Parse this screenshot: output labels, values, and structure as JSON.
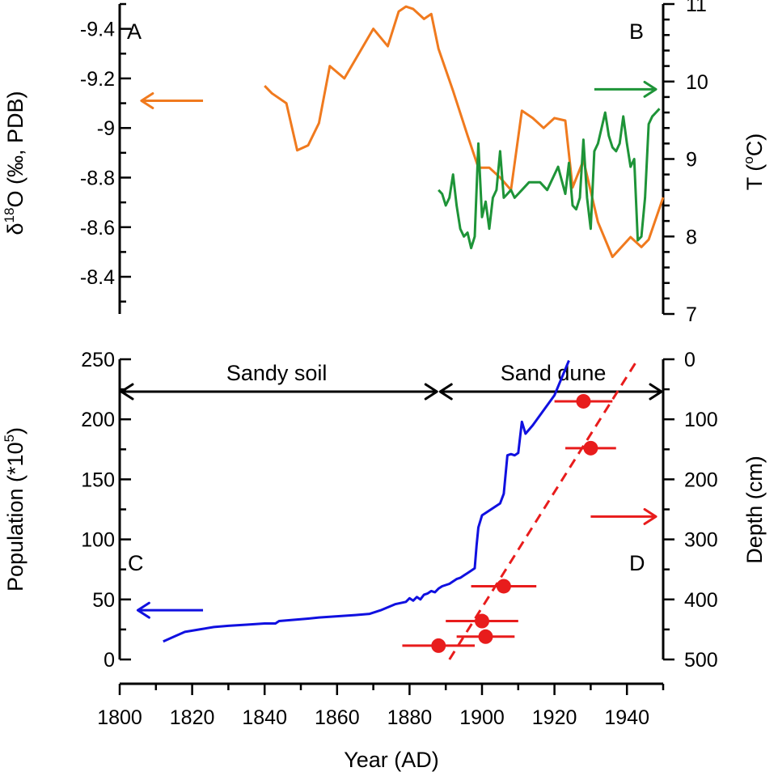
{
  "chart_data": [
    {
      "type": "line",
      "panel": "top",
      "x_label": "Year (AD)",
      "left_axis": {
        "label_pre": "δ",
        "label_sup": "18",
        "label_post": "O (‰, PDB)",
        "reversed": true,
        "ylim": [
          -8.25,
          -9.5
        ],
        "ticks": [
          "-9.4",
          "-9.2",
          "-9",
          "-8.8",
          "-8.6",
          "-8.4"
        ],
        "tick_values": [
          -9.4,
          -9.2,
          -9.0,
          -8.8,
          -8.6,
          -8.4
        ]
      },
      "right_axis": {
        "label_pre": "T (",
        "label_sup": "o",
        "label_post": "C)",
        "ylim": [
          7,
          11
        ],
        "ticks": [
          "7",
          "8",
          "9",
          "10",
          "11"
        ],
        "tick_values": [
          7,
          8,
          9,
          10,
          11
        ]
      },
      "panel_labels": [
        "A",
        "B"
      ],
      "series": [
        {
          "axis": "left",
          "color": "#F07A1E",
          "x": [
            1840,
            1842,
            1846,
            1849,
            1852,
            1855,
            1858,
            1862,
            1866,
            1870,
            1874,
            1877,
            1879,
            1881,
            1884,
            1886,
            1888,
            1892,
            1896,
            1899,
            1902,
            1905,
            1908,
            1911,
            1914,
            1917,
            1920,
            1923,
            1925,
            1928,
            1932,
            1936,
            1941,
            1944,
            1946,
            1950
          ],
          "y": [
            -9.17,
            -9.14,
            -9.1,
            -8.91,
            -8.93,
            -9.02,
            -9.25,
            -9.2,
            -9.3,
            -9.4,
            -9.33,
            -9.47,
            -9.49,
            -9.48,
            -9.44,
            -9.46,
            -9.32,
            -9.15,
            -8.97,
            -8.84,
            -8.84,
            -8.8,
            -8.75,
            -9.07,
            -9.04,
            -9.0,
            -9.04,
            -9.03,
            -8.76,
            -8.87,
            -8.62,
            -8.48,
            -8.56,
            -8.52,
            -8.55,
            -8.72
          ]
        },
        {
          "axis": "right",
          "color": "#1E9438",
          "x": [
            1888,
            1889,
            1890,
            1891,
            1892,
            1893,
            1894,
            1895,
            1896,
            1897,
            1898,
            1899,
            1900,
            1901,
            1902,
            1903,
            1904,
            1905,
            1906,
            1907,
            1908,
            1909,
            1910,
            1911,
            1913,
            1916,
            1918,
            1921,
            1923,
            1924,
            1925,
            1926,
            1927,
            1928,
            1929,
            1930,
            1931,
            1932,
            1934,
            1935,
            1936,
            1937,
            1938,
            1939,
            1940,
            1941,
            1942,
            1943,
            1944,
            1945,
            1946,
            1947,
            1948,
            1949
          ],
          "y": [
            8.6,
            8.55,
            8.4,
            8.5,
            8.8,
            8.4,
            8.1,
            8.0,
            8.05,
            7.85,
            8.0,
            9.2,
            8.25,
            8.45,
            8.1,
            8.5,
            8.6,
            9.1,
            8.5,
            8.55,
            8.6,
            8.5,
            8.55,
            8.6,
            8.7,
            8.7,
            8.6,
            8.9,
            8.55,
            8.95,
            8.4,
            8.35,
            8.5,
            9.25,
            8.5,
            8.1,
            9.1,
            9.2,
            9.6,
            9.3,
            9.15,
            9.1,
            9.2,
            9.55,
            9.2,
            8.9,
            9.0,
            7.95,
            8.0,
            8.5,
            9.45,
            9.55,
            9.6,
            9.65
          ]
        }
      ],
      "arrows": [
        {
          "color": "#F07A1E",
          "direction": "left",
          "x": [
            1823,
            1806
          ],
          "y_left": -9.11
        },
        {
          "color": "#1E9438",
          "direction": "right",
          "x": [
            1931,
            1948
          ],
          "y_right": 9.9
        }
      ]
    },
    {
      "type": "line",
      "panel": "bottom",
      "x_label": "Year (AD)",
      "xlim": [
        1800,
        1950
      ],
      "x_ticks": [
        "1800",
        "1820",
        "1840",
        "1860",
        "1880",
        "1900",
        "1920",
        "1940"
      ],
      "x_tick_values": [
        1800,
        1820,
        1840,
        1860,
        1880,
        1900,
        1920,
        1940
      ],
      "left_axis": {
        "label_pre": "Population (*10",
        "label_sup": "5",
        "label_post": ")",
        "ylim": [
          0,
          250
        ],
        "ticks": [
          "0",
          "50",
          "100",
          "150",
          "200",
          "250"
        ],
        "tick_values": [
          0,
          50,
          100,
          150,
          200,
          250
        ]
      },
      "right_axis": {
        "label": "Depth (cm)",
        "reversed": true,
        "ylim": [
          0,
          500
        ],
        "ticks": [
          "0",
          "100",
          "200",
          "300",
          "400",
          "500"
        ],
        "tick_values": [
          0,
          100,
          200,
          300,
          400,
          500
        ]
      },
      "panel_labels": [
        "C",
        "D"
      ],
      "zones": [
        {
          "label": "Sandy soil",
          "x": [
            1800,
            1888
          ]
        },
        {
          "label": "Sand dune",
          "x": [
            1888,
            1950
          ]
        }
      ],
      "series": [
        {
          "axis": "left",
          "color": "#1010E0",
          "style": "solid",
          "x": [
            1812,
            1815,
            1818,
            1822,
            1826,
            1830,
            1835,
            1840,
            1843,
            1844,
            1848,
            1852,
            1855,
            1860,
            1865,
            1869,
            1872,
            1876,
            1879,
            1880,
            1881,
            1882,
            1883,
            1884,
            1885,
            1886,
            1887,
            1888,
            1889,
            1890,
            1891,
            1892,
            1893,
            1894,
            1895,
            1896,
            1897,
            1898,
            1898.5,
            1899,
            1900,
            1905,
            1906,
            1907,
            1908,
            1909,
            1910,
            1911,
            1912,
            1914,
            1920,
            1924
          ],
          "y": [
            15,
            19,
            23,
            25,
            27,
            28,
            29,
            30,
            30,
            32,
            33,
            34,
            35,
            36,
            37,
            38,
            41,
            46,
            48,
            51,
            49,
            52,
            50,
            54,
            55,
            57,
            56,
            59,
            61,
            62,
            63,
            65,
            67,
            68,
            70,
            72,
            74,
            76,
            95,
            110,
            120,
            130,
            138,
            170,
            171,
            170,
            172,
            198,
            188,
            195,
            220,
            249
          ]
        },
        {
          "axis": "right",
          "color": "#E81C1C",
          "style": "dashed",
          "x": [
            1891,
            1943
          ],
          "y": [
            500,
            0
          ]
        }
      ],
      "points": {
        "axis": "right",
        "color": "#E81C1C",
        "x": [
          1888,
          1900,
          1901,
          1906,
          1928,
          1930
        ],
        "y": [
          477,
          436,
          462,
          378,
          70,
          148
        ],
        "xerr": [
          10,
          10,
          8,
          9,
          8,
          7
        ]
      },
      "arrows": [
        {
          "color": "#1010E0",
          "direction": "left",
          "x": [
            1823,
            1805
          ],
          "y_left": 41
        },
        {
          "color": "#E81C1C",
          "direction": "right",
          "x": [
            1930,
            1948
          ],
          "y_right": 262
        }
      ]
    }
  ]
}
